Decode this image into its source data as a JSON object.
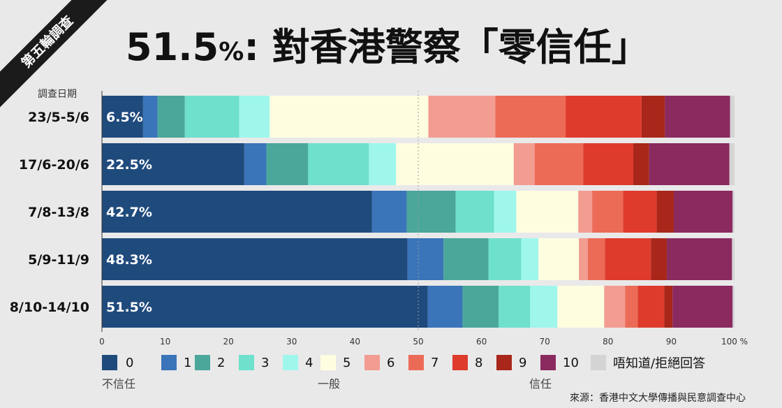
{
  "badge": "第五輪調查",
  "title": {
    "main": "51.5",
    "pct": "%",
    "rest": ": 對香港警察「零信任」"
  },
  "date_header": "調查日期",
  "source": "來源：香港中文大學傳播與民意調查中心",
  "chart_data": {
    "type": "bar",
    "orientation": "horizontal",
    "stacked": true,
    "title": "51.5%: 對香港警察「零信任」",
    "xlabel": "",
    "ylabel": "調查日期",
    "xlim": [
      0,
      100
    ],
    "x_ticks": [
      0,
      10,
      20,
      30,
      40,
      50,
      60,
      70,
      80,
      90,
      100
    ],
    "x_tick_labels": [
      "0",
      "10",
      "20",
      "30",
      "40",
      "50",
      "60",
      "70",
      "80",
      "90",
      "100 %"
    ],
    "reference_line": 50,
    "categories": [
      "23/5-5/6",
      "17/6-20/6",
      "7/8-13/8",
      "5/9-11/9",
      "8/10-14/10"
    ],
    "bar_labels": [
      "6.5%",
      "22.5%",
      "42.7%",
      "48.3%",
      "51.5%"
    ],
    "series": [
      {
        "name": "0",
        "color": "#1f4a7c",
        "values": [
          6.5,
          22.5,
          42.7,
          48.3,
          51.5
        ]
      },
      {
        "name": "1",
        "color": "#3a74b9",
        "values": [
          2.3,
          3.5,
          5.5,
          5.7,
          5.5
        ]
      },
      {
        "name": "2",
        "color": "#4aa79a",
        "values": [
          4.3,
          6.6,
          7.7,
          7.1,
          5.7
        ]
      },
      {
        "name": "3",
        "color": "#6ee0cc",
        "values": [
          8.6,
          9.6,
          6.1,
          5.2,
          5.0
        ]
      },
      {
        "name": "4",
        "color": "#9ff7ec",
        "values": [
          4.8,
          4.3,
          3.5,
          2.7,
          4.3
        ]
      },
      {
        "name": "5",
        "color": "#fffde0",
        "values": [
          25.1,
          18.6,
          9.8,
          6.4,
          7.4
        ]
      },
      {
        "name": "6",
        "color": "#f39c92",
        "values": [
          10.6,
          3.3,
          2.2,
          1.4,
          3.3
        ]
      },
      {
        "name": "7",
        "color": "#ec6b57",
        "values": [
          11.1,
          7.7,
          4.9,
          2.7,
          2.0
        ]
      },
      {
        "name": "8",
        "color": "#de3b2d",
        "values": [
          12.0,
          7.9,
          5.3,
          7.3,
          4.2
        ]
      },
      {
        "name": "9",
        "color": "#a8271a",
        "values": [
          3.7,
          2.5,
          2.7,
          2.5,
          1.3
        ]
      },
      {
        "name": "10",
        "color": "#8a2a5f",
        "values": [
          10.3,
          12.7,
          9.3,
          10.3,
          9.5
        ]
      },
      {
        "name": "唔知道/拒絕回答",
        "color": "#d4d4d4",
        "values": [
          0.7,
          0.8,
          0.3,
          0.4,
          0.3
        ]
      }
    ],
    "scale_anchors": [
      {
        "label": "不信任",
        "at": 0
      },
      {
        "label": "一般",
        "at": 5
      },
      {
        "label": "信任",
        "at": 10
      }
    ],
    "legend_position": "bottom"
  }
}
